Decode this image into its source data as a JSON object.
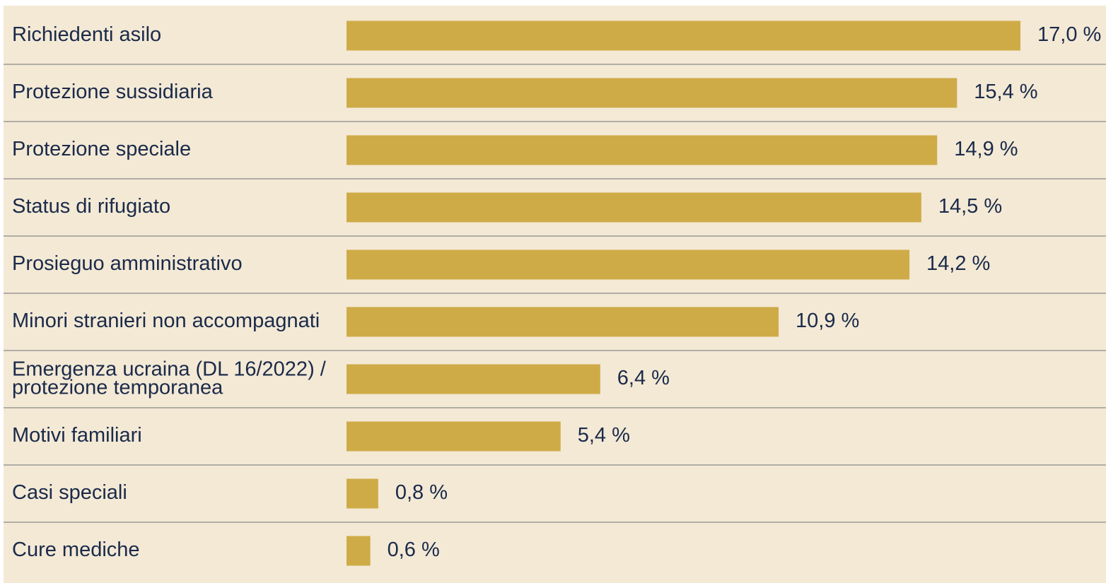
{
  "chart_data": {
    "type": "bar",
    "categories": [
      "Richiedenti asilo",
      "Protezione sussidiaria",
      "Protezione speciale",
      "Status di rifugiato",
      "Prosieguo amministrativo",
      "Minori stranieri non accompagnati",
      "Emergenza ucraina (DL 16/2022) / protezione temporanea",
      "Motivi familiari",
      "Casi speciali",
      "Cure mediche"
    ],
    "values": [
      17.0,
      15.4,
      14.9,
      14.5,
      14.2,
      10.9,
      6.4,
      5.4,
      0.8,
      0.6
    ],
    "value_labels": [
      "17,0 %",
      "15,4 %",
      "14,9 %",
      "14,5 %",
      "14,2 %",
      "10,9 %",
      "6,4 %",
      "5,4 %",
      "0,8 %",
      "0,6 %"
    ],
    "color": "#cfab47"
  }
}
